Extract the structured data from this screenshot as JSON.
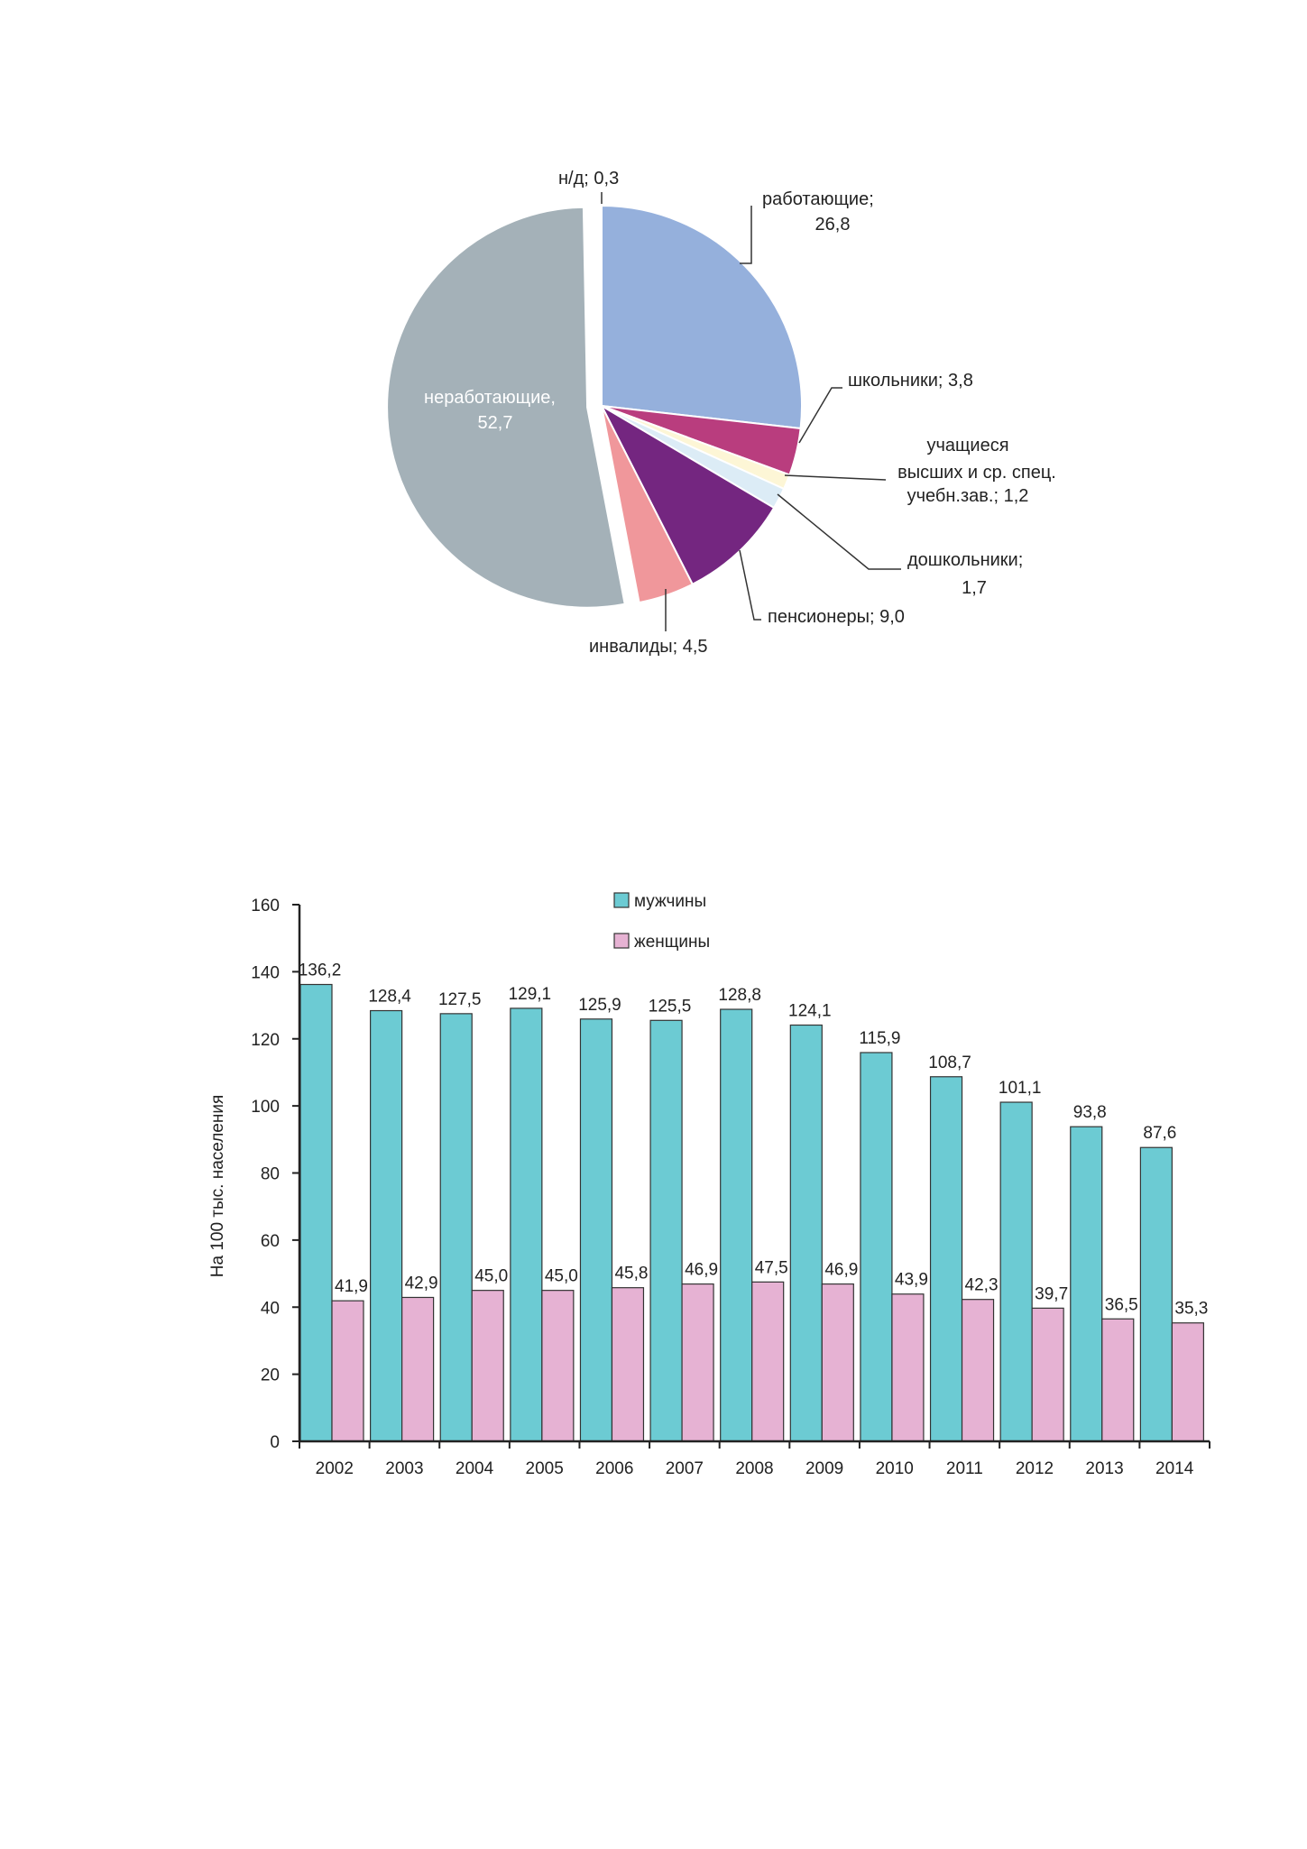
{
  "chart_data": [
    {
      "type": "pie",
      "slices": [
        {
          "label_lines": [
            "работающие;",
            "26,8"
          ],
          "value": 26.8,
          "color": "#95b0dc"
        },
        {
          "label_lines": [
            "школьники;  3,8"
          ],
          "value": 3.8,
          "color": "#b93d7e"
        },
        {
          "label_lines": [
            "учащиеся",
            "высших и  ср. спец.",
            "учебн.зав.; 1,2"
          ],
          "value": 1.2,
          "color": "#fdf6d6"
        },
        {
          "label_lines": [
            "дошкольники;",
            "1,7"
          ],
          "value": 1.7,
          "color": "#dcecf6"
        },
        {
          "label_lines": [
            "пенсионеры;  9,0"
          ],
          "value": 9.0,
          "color": "#742680"
        },
        {
          "label_lines": [
            "инвалиды; 4,5"
          ],
          "value": 4.5,
          "color": "#f0979b"
        },
        {
          "label_lines": [
            "неработающие,",
            "52,7"
          ],
          "value": 52.7,
          "color": "#a4b1b8"
        },
        {
          "label_lines": [
            "н/д; 0,3"
          ],
          "value": 0.3,
          "color": "#ffffff"
        }
      ]
    },
    {
      "type": "bar",
      "categories": [
        "2002",
        "2003",
        "2004",
        "2005",
        "2006",
        "2007",
        "2008",
        "2009",
        "2010",
        "2011",
        "2012",
        "2013",
        "2014"
      ],
      "series": [
        {
          "name": "мужчины",
          "color": "#6ccbd3",
          "values": [
            136.2,
            128.4,
            127.5,
            129.1,
            125.9,
            125.5,
            128.8,
            124.1,
            115.9,
            108.7,
            101.1,
            93.8,
            87.6
          ],
          "labels": [
            "136,2",
            "128,4",
            "127,5",
            "129,1",
            "125,9",
            "125,5",
            "128,8",
            "124,1",
            "115,9",
            "108,7",
            "101,1",
            "93,8",
            "87,6"
          ]
        },
        {
          "name": "женщины",
          "color": "#e6b2d3",
          "values": [
            41.9,
            42.9,
            45.0,
            45.0,
            45.8,
            46.9,
            47.5,
            46.9,
            43.9,
            42.3,
            39.7,
            36.5,
            35.3
          ],
          "labels": [
            "41,9",
            "42,9",
            "45,0",
            "45,0",
            "45,8",
            "46,9",
            "47,5",
            "46,9",
            "43,9",
            "42,3",
            "39,7",
            "36,5",
            "35,3"
          ]
        }
      ],
      "ylabel": "На 100 тыс. населения",
      "ylim": [
        0,
        160
      ],
      "yticks": [
        0,
        20,
        40,
        60,
        80,
        100,
        120,
        140,
        160
      ],
      "grid": false,
      "legend": "top-center"
    }
  ]
}
